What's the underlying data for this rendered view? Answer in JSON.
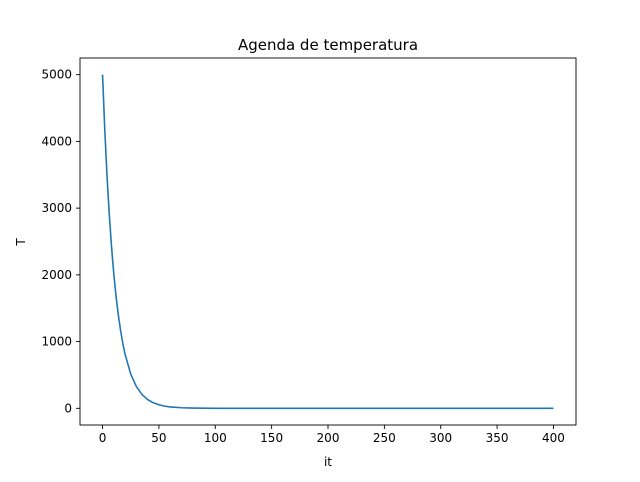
{
  "chart_data": {
    "type": "line",
    "title": "Agenda de temperatura",
    "xlabel": "it",
    "ylabel": "T",
    "xlim": [
      -20,
      420
    ],
    "ylim": [
      -250,
      5250
    ],
    "xticks": [
      0,
      50,
      100,
      150,
      200,
      250,
      300,
      350,
      400
    ],
    "yticks": [
      0,
      1000,
      2000,
      3000,
      4000,
      5000
    ],
    "grid": false,
    "series": [
      {
        "color": "#1f77b4",
        "x": [
          0,
          2,
          4,
          6,
          8,
          10,
          12,
          14,
          16,
          18,
          20,
          25,
          30,
          35,
          40,
          45,
          50,
          55,
          60,
          70,
          80,
          100,
          150,
          200,
          250,
          300,
          350,
          400
        ],
        "y": [
          5000,
          4168,
          3474,
          2896,
          2414,
          2012,
          1677,
          1398,
          1166,
          971,
          810,
          513,
          326,
          206,
          131,
          83,
          53,
          33,
          21,
          8.6,
          3.5,
          0.6,
          0,
          0,
          0,
          0,
          0,
          0
        ]
      }
    ]
  }
}
